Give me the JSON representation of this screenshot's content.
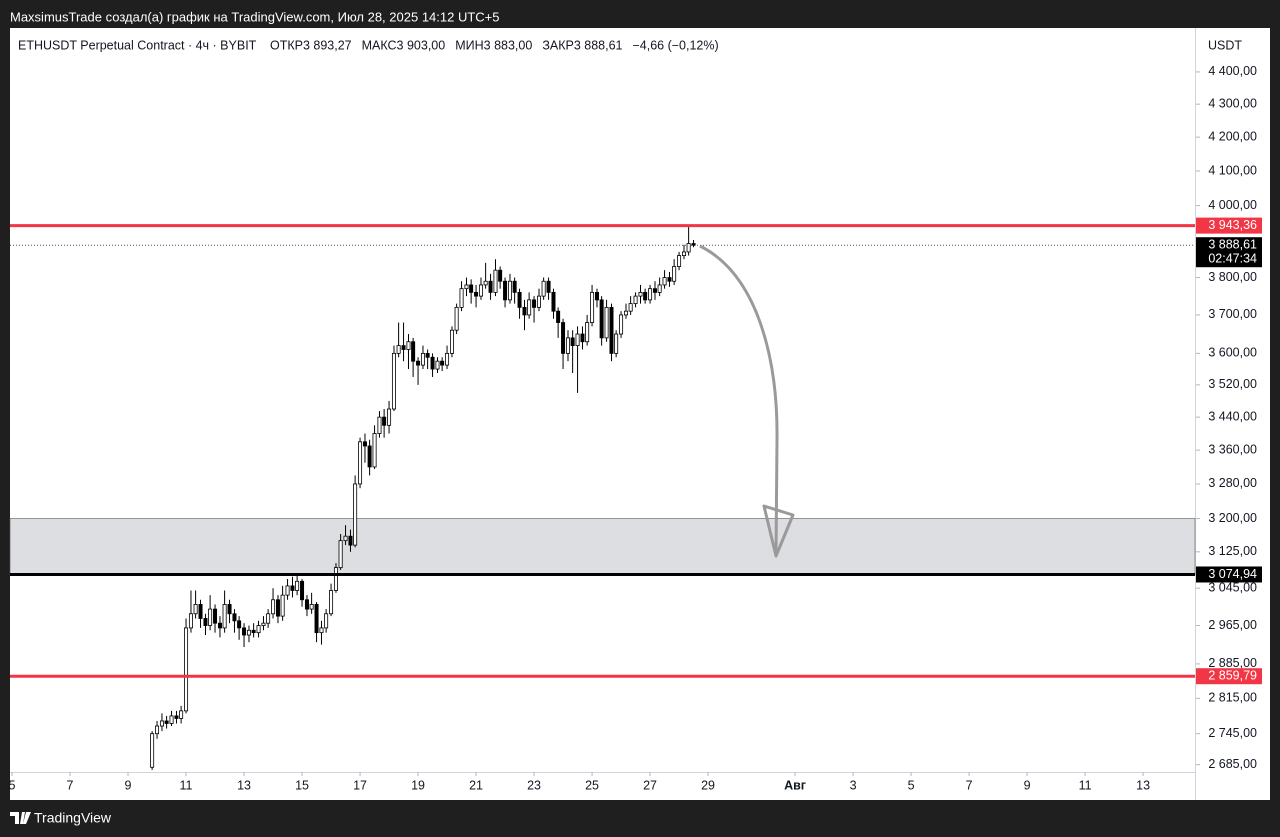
{
  "header": {
    "caption": "MaxsimusTrade создал(а) график на TradingView.com, Июл 28, 2025 14:12 UTC+5",
    "brand": "TradingView"
  },
  "chart_data": {
    "type": "candlestick",
    "symbol": "ETHUSDT Perpetual Contract · 4ч · BYBIT",
    "legend_items": [
      "ОТКР3 893,27",
      "МАКС3 903,00",
      "МИН3 883,00",
      "ЗАКР3 888,61",
      "−4,66 (−0,12%)"
    ],
    "currency": "USDT",
    "log_scale": true,
    "up_color": "#ffffff",
    "down_color": "#000000",
    "outline_color": "#000000",
    "xlim": [
      4.93,
      45.79
    ],
    "xticks": [
      5,
      7,
      9,
      11,
      13,
      15,
      17,
      19,
      21,
      23,
      25,
      27,
      29,
      {
        "value": 32,
        "label": "Авг"
      },
      {
        "value": 34,
        "label": "3"
      },
      {
        "value": 36,
        "label": "5"
      },
      {
        "value": 38,
        "label": "7"
      },
      {
        "value": 40,
        "label": "9"
      },
      {
        "value": 42,
        "label": "11"
      },
      {
        "value": 44,
        "label": "13"
      }
    ],
    "ylim": [
      2671,
      4540
    ],
    "yticks": [
      {
        "value": 4400,
        "label": "4 400,00"
      },
      {
        "value": 4300,
        "label": "4 300,00"
      },
      {
        "value": 4200,
        "label": "4 200,00"
      },
      {
        "value": 4100,
        "label": "4 100,00"
      },
      {
        "value": 4000,
        "label": "4 000,00"
      },
      {
        "value": 3800,
        "label": "3 800,00"
      },
      {
        "value": 3700,
        "label": "3 700,00"
      },
      {
        "value": 3600,
        "label": "3 600,00"
      },
      {
        "value": 3520,
        "label": "3 520,00"
      },
      {
        "value": 3440,
        "label": "3 440,00"
      },
      {
        "value": 3360,
        "label": "3 360,00"
      },
      {
        "value": 3280,
        "label": "3 280,00"
      },
      {
        "value": 3200,
        "label": "3 200,00"
      },
      {
        "value": 3125,
        "label": "3 125,00"
      },
      {
        "value": 3045,
        "label": "3 045,00"
      },
      {
        "value": 2965,
        "label": "2 965,00"
      },
      {
        "value": 2885,
        "label": "2 885,00"
      },
      {
        "value": 2815,
        "label": "2 815,00"
      },
      {
        "value": 2745,
        "label": "2 745,00"
      },
      {
        "value": 2685,
        "label": "2 685,00"
      }
    ],
    "levels": [
      {
        "value": 3943.36,
        "label": "3 943,36",
        "color": "#f23645"
      },
      {
        "value": 3074.94,
        "label": "3 074,94",
        "color": "#000000"
      },
      {
        "value": 2859.79,
        "label": "2 859,79",
        "color": "#f23645"
      }
    ],
    "zone": {
      "from": 3074.94,
      "to": 3200,
      "color": "#dddee1"
    },
    "last": {
      "value": 3888.61,
      "label": "3 888,61",
      "countdown": "02:47:34"
    },
    "x": [
      9.83,
      10,
      10.17,
      10.33,
      10.5,
      10.67,
      10.83,
      11,
      11.17,
      11.33,
      11.5,
      11.67,
      11.83,
      12,
      12.17,
      12.33,
      12.5,
      12.67,
      12.83,
      13,
      13.17,
      13.33,
      13.5,
      13.67,
      13.83,
      14,
      14.17,
      14.33,
      14.5,
      14.67,
      14.83,
      15,
      15.17,
      15.33,
      15.5,
      15.67,
      15.83,
      16,
      16.17,
      16.33,
      16.5,
      16.67,
      16.83,
      17,
      17.17,
      17.33,
      17.5,
      17.67,
      17.83,
      18,
      18.17,
      18.33,
      18.5,
      18.67,
      18.83,
      19,
      19.17,
      19.33,
      19.5,
      19.67,
      19.83,
      20,
      20.17,
      20.33,
      20.5,
      20.67,
      20.83,
      21,
      21.17,
      21.33,
      21.5,
      21.67,
      21.83,
      22,
      22.17,
      22.33,
      22.5,
      22.67,
      22.83,
      23,
      23.17,
      23.33,
      23.5,
      23.67,
      23.83,
      24,
      24.17,
      24.33,
      24.5,
      24.67,
      24.83,
      25,
      25.17,
      25.33,
      25.5,
      25.67,
      25.83,
      26,
      26.17,
      26.33,
      26.5,
      26.67,
      26.83,
      27,
      27.17,
      27.33,
      27.5,
      27.67,
      27.83,
      28,
      28.17,
      28.33,
      28.5
    ],
    "open": [
      2680,
      2745,
      2760,
      2770,
      2765,
      2780,
      2775,
      2790,
      2960,
      2990,
      3010,
      2980,
      2965,
      3000,
      2970,
      2960,
      3010,
      2990,
      2975,
      2960,
      2945,
      2955,
      2950,
      2965,
      2970,
      2990,
      3020,
      2985,
      3030,
      3050,
      3040,
      3060,
      3020,
      3000,
      3010,
      2950,
      2960,
      2990,
      3040,
      3090,
      3150,
      3160,
      3140,
      3280,
      3380,
      3370,
      3320,
      3400,
      3440,
      3420,
      3460,
      3600,
      3620,
      3610,
      3630,
      3580,
      3570,
      3600,
      3590,
      3560,
      3580,
      3570,
      3600,
      3660,
      3720,
      3770,
      3780,
      3760,
      3750,
      3780,
      3790,
      3760,
      3820,
      3790,
      3740,
      3790,
      3760,
      3720,
      3700,
      3740,
      3720,
      3750,
      3790,
      3760,
      3710,
      3680,
      3600,
      3640,
      3620,
      3650,
      3630,
      3680,
      3760,
      3740,
      3640,
      3720,
      3600,
      3650,
      3700,
      3710,
      3730,
      3750,
      3760,
      3740,
      3770,
      3760,
      3780,
      3800,
      3790,
      3830,
      3860,
      3870,
      3893.27
    ],
    "high": [
      2750,
      2770,
      2785,
      2780,
      2790,
      2790,
      2800,
      2980,
      3040,
      3040,
      3020,
      2990,
      3030,
      3010,
      2985,
      3040,
      3020,
      3000,
      2985,
      2970,
      2965,
      2970,
      2975,
      2985,
      3000,
      3045,
      3030,
      3050,
      3065,
      3070,
      3075,
      3065,
      3030,
      3035,
      3015,
      2975,
      3000,
      3055,
      3100,
      3165,
      3185,
      3175,
      3300,
      3390,
      3400,
      3385,
      3420,
      3455,
      3460,
      3480,
      3620,
      3680,
      3680,
      3650,
      3640,
      3590,
      3620,
      3610,
      3600,
      3590,
      3590,
      3620,
      3670,
      3730,
      3790,
      3800,
      3795,
      3780,
      3800,
      3840,
      3810,
      3850,
      3830,
      3800,
      3810,
      3800,
      3770,
      3740,
      3760,
      3750,
      3770,
      3800,
      3800,
      3770,
      3720,
      3690,
      3660,
      3660,
      3670,
      3670,
      3700,
      3780,
      3770,
      3750,
      3740,
      3730,
      3660,
      3710,
      3730,
      3750,
      3760,
      3780,
      3770,
      3780,
      3790,
      3800,
      3820,
      3815,
      3850,
      3870,
      3890,
      3943.36,
      3903
    ],
    "low": [
      2675,
      2735,
      2750,
      2755,
      2760,
      2765,
      2765,
      2785,
      2950,
      2980,
      2960,
      2945,
      2955,
      2950,
      2940,
      2950,
      2970,
      2950,
      2935,
      2920,
      2930,
      2940,
      2940,
      2955,
      2960,
      2980,
      2970,
      2975,
      3020,
      3025,
      3030,
      3005,
      2985,
      2990,
      2930,
      2925,
      2950,
      2985,
      3035,
      3085,
      3140,
      3125,
      3135,
      3270,
      3330,
      3300,
      3315,
      3390,
      3390,
      3400,
      3455,
      3590,
      3580,
      3560,
      3540,
      3520,
      3560,
      3560,
      3540,
      3550,
      3555,
      3560,
      3590,
      3650,
      3710,
      3750,
      3730,
      3720,
      3740,
      3770,
      3740,
      3750,
      3770,
      3720,
      3730,
      3730,
      3690,
      3660,
      3690,
      3680,
      3710,
      3740,
      3740,
      3690,
      3640,
      3560,
      3580,
      3550,
      3500,
      3610,
      3620,
      3670,
      3720,
      3620,
      3630,
      3580,
      3590,
      3640,
      3690,
      3700,
      3720,
      3730,
      3730,
      3730,
      3740,
      3750,
      3770,
      3775,
      3780,
      3820,
      3850,
      3860,
      3883
    ],
    "close": [
      2745,
      2760,
      2770,
      2765,
      2780,
      2775,
      2790,
      2960,
      2990,
      3010,
      2980,
      2965,
      3000,
      2970,
      2960,
      3010,
      2990,
      2975,
      2960,
      2945,
      2955,
      2950,
      2965,
      2970,
      2990,
      3020,
      2985,
      3030,
      3050,
      3040,
      3060,
      3020,
      3000,
      3010,
      2950,
      2960,
      2990,
      3040,
      3090,
      3150,
      3160,
      3140,
      3280,
      3380,
      3370,
      3320,
      3400,
      3440,
      3420,
      3460,
      3600,
      3620,
      3610,
      3630,
      3580,
      3570,
      3600,
      3590,
      3560,
      3580,
      3570,
      3600,
      3660,
      3720,
      3770,
      3780,
      3760,
      3750,
      3780,
      3790,
      3760,
      3820,
      3790,
      3740,
      3790,
      3760,
      3720,
      3700,
      3740,
      3720,
      3750,
      3790,
      3760,
      3710,
      3680,
      3600,
      3640,
      3620,
      3650,
      3630,
      3680,
      3760,
      3740,
      3640,
      3720,
      3600,
      3650,
      3700,
      3710,
      3730,
      3750,
      3760,
      3740,
      3770,
      3760,
      3780,
      3800,
      3790,
      3830,
      3860,
      3870,
      3893.27,
      3888.61
    ]
  }
}
